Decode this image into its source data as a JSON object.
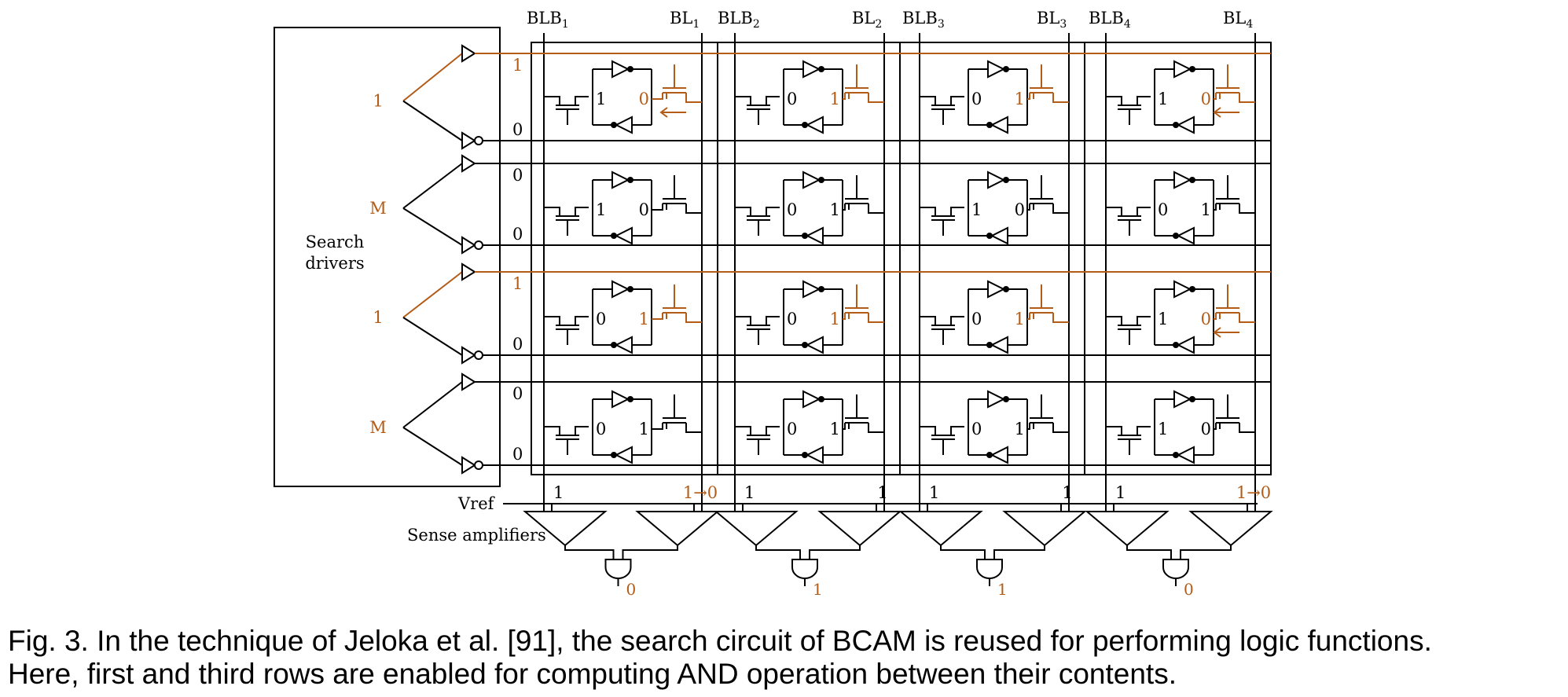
{
  "colors": {
    "highlight": "#b35c18",
    "ink": "#000000"
  },
  "search_drivers_label": [
    "Search",
    "drivers"
  ],
  "vref_label": "Vref",
  "sense_amplifiers_label": "Sense amplifiers",
  "columns": [
    {
      "blb": "BLB",
      "bl": "BL",
      "sub": "1",
      "blb_value": "1",
      "bl_value": "1→0",
      "bl_changed": true,
      "output": "0"
    },
    {
      "blb": "BLB",
      "bl": "BL",
      "sub": "2",
      "blb_value": "1",
      "bl_value": "1",
      "bl_changed": false,
      "output": "1"
    },
    {
      "blb": "BLB",
      "bl": "BL",
      "sub": "3",
      "blb_value": "1",
      "bl_value": "1",
      "bl_changed": false,
      "output": "1"
    },
    {
      "blb": "BLB",
      "bl": "BL",
      "sub": "4",
      "blb_value": "1",
      "bl_value": "1→0",
      "bl_changed": true,
      "output": "0"
    }
  ],
  "rows": [
    {
      "driver_label": "1",
      "enabled": true,
      "wl_value": "1",
      "wlb_value": "0",
      "cells": [
        {
          "left": "1",
          "right": "0",
          "discharge": true
        },
        {
          "left": "0",
          "right": "1",
          "discharge": false
        },
        {
          "left": "0",
          "right": "1",
          "discharge": false
        },
        {
          "left": "1",
          "right": "0",
          "discharge": true
        }
      ]
    },
    {
      "driver_label": "M",
      "enabled": false,
      "wl_value": "0",
      "wlb_value": "0",
      "cells": [
        {
          "left": "1",
          "right": "0",
          "discharge": false
        },
        {
          "left": "0",
          "right": "1",
          "discharge": false
        },
        {
          "left": "1",
          "right": "0",
          "discharge": false
        },
        {
          "left": "0",
          "right": "1",
          "discharge": false
        }
      ]
    },
    {
      "driver_label": "1",
      "enabled": true,
      "wl_value": "1",
      "wlb_value": "0",
      "cells": [
        {
          "left": "0",
          "right": "1",
          "discharge": false
        },
        {
          "left": "0",
          "right": "1",
          "discharge": false
        },
        {
          "left": "0",
          "right": "1",
          "discharge": false
        },
        {
          "left": "1",
          "right": "0",
          "discharge": true
        }
      ]
    },
    {
      "driver_label": "M",
      "enabled": false,
      "wl_value": "0",
      "wlb_value": "0",
      "cells": [
        {
          "left": "0",
          "right": "1",
          "discharge": false
        },
        {
          "left": "0",
          "right": "1",
          "discharge": false
        },
        {
          "left": "0",
          "right": "1",
          "discharge": false
        },
        {
          "left": "1",
          "right": "0",
          "discharge": false
        }
      ]
    }
  ],
  "caption": {
    "line1": "Fig. 3.  In the technique of Jeloka et al. [91], the search circuit of BCAM is reused for performing logic functions.",
    "line2": "Here, first and third rows are enabled for computing AND operation between their contents."
  }
}
